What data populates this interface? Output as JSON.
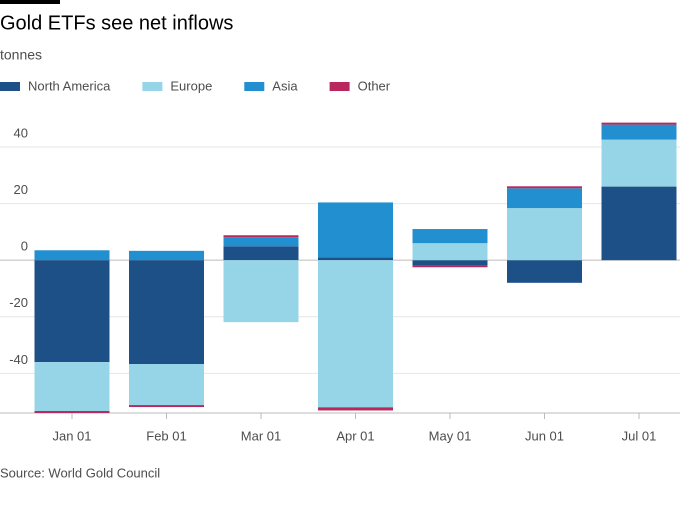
{
  "chart_data": {
    "type": "stacked-bar",
    "title": "Gold ETFs see net inflows",
    "subtitle": "tonnes",
    "source": "Source: World Gold Council",
    "categories": [
      "Jan 01",
      "Feb 01",
      "Mar 01",
      "Apr 01",
      "May 01",
      "Jun 01",
      "Jul 01"
    ],
    "series": [
      {
        "name": "North America",
        "color": "#1e5088",
        "values": [
          -36,
          -36.7,
          4.9,
          1,
          -2,
          -8,
          26
        ]
      },
      {
        "name": "Europe",
        "color": "#96d4e8",
        "values": [
          -17.3,
          -14.5,
          -21.9,
          -52,
          6,
          18.4,
          16.6
        ]
      },
      {
        "name": "Asia",
        "color": "#2290d0",
        "values": [
          3.5,
          3.3,
          3.2,
          19.4,
          5,
          7,
          5.3
        ]
      },
      {
        "name": "Other",
        "color": "#b8285c",
        "values": [
          -0.7,
          -0.7,
          0.7,
          -1.1,
          -0.5,
          0.7,
          0.7
        ]
      }
    ],
    "ylim": [
      -54,
      52
    ],
    "yticks": [
      -40,
      -20,
      0,
      20,
      40
    ],
    "grid": true,
    "legend": "top"
  }
}
